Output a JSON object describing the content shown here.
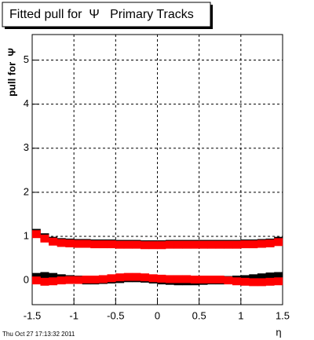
{
  "chart_data": {
    "type": "scatter",
    "title": "Fitted pull for  Ψ   Primary Tracks",
    "y_label": "pull for  Ψ",
    "x_label": "η",
    "timestamp": "Thu Oct 27 17:13:32 2011",
    "x": [
      -1.45,
      -1.35,
      -1.25,
      -1.15,
      -1.05,
      -0.95,
      -0.85,
      -0.75,
      -0.65,
      -0.55,
      -0.45,
      -0.35,
      -0.25,
      -0.15,
      -0.05,
      0.05,
      0.15,
      0.25,
      0.35,
      0.45,
      0.55,
      0.65,
      0.75,
      0.85,
      0.95,
      1.05,
      1.15,
      1.25,
      1.35,
      1.45
    ],
    "series": [
      {
        "color": "#000000",
        "values": [
          1.08,
          0.98,
          0.9,
          0.87,
          0.86,
          0.85,
          0.85,
          0.84,
          0.84,
          0.84,
          0.83,
          0.83,
          0.83,
          0.82,
          0.82,
          0.82,
          0.83,
          0.83,
          0.83,
          0.83,
          0.83,
          0.83,
          0.83,
          0.83,
          0.83,
          0.84,
          0.84,
          0.85,
          0.86,
          0.9
        ]
      },
      {
        "color": "#000000",
        "values": [
          0.08,
          0.1,
          0.08,
          0.05,
          0.03,
          0.02,
          0.0,
          0.0,
          0.01,
          0.02,
          0.03,
          0.05,
          0.05,
          0.04,
          0.02,
          0.0,
          -0.01,
          -0.02,
          -0.02,
          -0.02,
          -0.01,
          0.0,
          0.0,
          0.01,
          0.02,
          0.03,
          0.05,
          0.07,
          0.09,
          0.1
        ]
      },
      {
        "color": "#ff0000",
        "values": [
          1.05,
          0.95,
          0.88,
          0.85,
          0.84,
          0.83,
          0.83,
          0.82,
          0.82,
          0.82,
          0.81,
          0.81,
          0.81,
          0.8,
          0.8,
          0.8,
          0.81,
          0.81,
          0.81,
          0.81,
          0.81,
          0.81,
          0.81,
          0.81,
          0.81,
          0.82,
          0.82,
          0.83,
          0.84,
          0.87
        ]
      },
      {
        "color": "#ff0000",
        "values": [
          0.0,
          -0.03,
          -0.02,
          0.0,
          0.01,
          0.01,
          0.02,
          0.02,
          0.03,
          0.05,
          0.07,
          0.08,
          0.08,
          0.07,
          0.05,
          0.04,
          0.03,
          0.03,
          0.03,
          0.02,
          0.02,
          0.02,
          0.02,
          0.0,
          -0.02,
          -0.03,
          -0.04,
          -0.04,
          -0.03,
          -0.02
        ]
      }
    ],
    "xlim": [
      -1.5,
      1.5
    ],
    "ylim": [
      -0.55,
      5.58
    ],
    "xticks": [
      -1.5,
      -1,
      -0.5,
      0,
      0.5,
      1,
      1.5
    ],
    "yticks": [
      0,
      1,
      2,
      3,
      4,
      5
    ],
    "grid": true
  }
}
